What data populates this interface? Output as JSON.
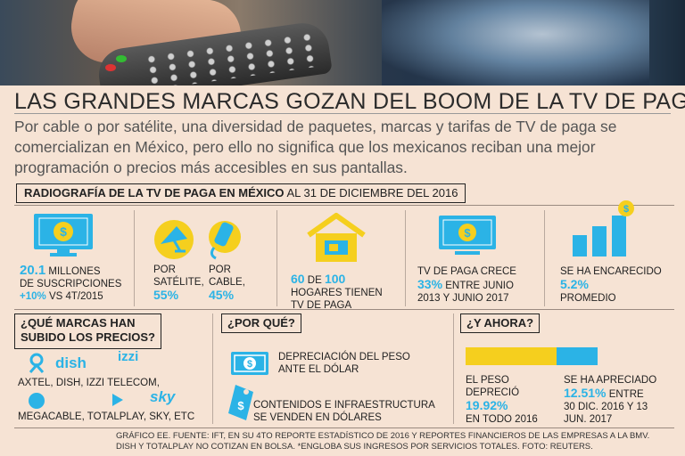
{
  "headline": "LAS GRANDES MARCAS GOZAN DEL BOOM DE LA TV DE PAGA",
  "intro": "Por cable o por satélite, una diversidad de paquetes, marcas y tarifas de TV de paga se comercializan en México, pero ello no significa que los mexicanos reciban una mejor programación o precios más accesibles en sus pantallas.",
  "radiografia": {
    "bold": "RADIOGRAFÍA DE LA TV DE PAGA EN MÉXICO",
    "rest": "AL 31 DE DICIEMBRE DEL 2016"
  },
  "stats": {
    "subs_value": "20.1",
    "subs_unit": "MILLONES",
    "subs_label": "DE SUSCRIPCIONES",
    "subs_change": "+10%",
    "subs_vs": "VS 4T/2015",
    "sat_label1": "POR",
    "sat_label2": "SATÉLITE,",
    "sat_value": "55%",
    "cab_label1": "POR",
    "cab_label2": "CABLE,",
    "cab_value": "45%",
    "homes_a": "60",
    "homes_de": "DE",
    "homes_b": "100",
    "homes_l1": "HOGARES TIENEN",
    "homes_l2": "TV DE PAGA",
    "grow_l1": "TV DE PAGA CRECE",
    "grow_value": "33%",
    "grow_l2": "ENTRE JUNIO",
    "grow_l3": "2013 Y JUNIO 2017",
    "price_l1": "SE HA ENCARECIDO",
    "price_value": "5.2%",
    "price_l2": "PROMEDIO"
  },
  "marcas": {
    "title1": "¿QUÉ MARCAS HAN",
    "title2": "SUBIDO LOS PRECIOS?",
    "line1": "AXTEL, DISH, IZZI TELECOM,",
    "line2": "MEGACABLE, TOTALPLAY, SKY, ETC",
    "logo_dish": "dish",
    "logo_izzi": "izzi",
    "logo_sky": "sky"
  },
  "porque": {
    "title": "¿POR QUÉ?",
    "r1a": "DEPRECIACIÓN DEL PESO",
    "r1b": "ANTE EL DÓLAR",
    "r2a": "CONTENIDOS E INFRAESTRUCTURA",
    "r2b": "SE VENDEN EN DÓLARES"
  },
  "ahora": {
    "title": "¿Y AHORA?",
    "peso_l1": "EL PESO",
    "peso_l2": "DEPRECIÓ",
    "peso_value": "19.92%",
    "peso_l3": "EN TODO 2016",
    "ap_l1": "SE HA APRECIADO",
    "ap_value": "12.51%",
    "ap_l1b": "ENTRE",
    "ap_l2": "30 DIC. 2016 Y 13",
    "ap_l3": "JUN. 2017",
    "bar_yellow_pct": 19.92,
    "bar_blue_pct": 12.51
  },
  "footer": {
    "line1": "GRÁFICO EE. FUENTE: IFT, EN SU 4TO REPORTE ESTADÍSTICO DE 2016 Y REPORTES FINANCIEROS DE LAS EMPRESAS A LA BMV.",
    "line2": "DISH Y TOTALPLAY NO COTIZAN EN BOLSA. *ENGLOBA SUS INGRESOS POR SERVICIOS TOTALES. FOTO: REUTERS."
  },
  "colors": {
    "accent": "#2bb3e6",
    "yellow": "#f5cf1e",
    "bg": "#f6e3d4"
  },
  "icons": [
    "tv-dollar-icon",
    "satellite-dish-icon",
    "cable-icon",
    "house-tv-icon",
    "tv-dollar-icon",
    "bar-chart-dollar-icon",
    "bill-icon",
    "price-tag-icon"
  ]
}
